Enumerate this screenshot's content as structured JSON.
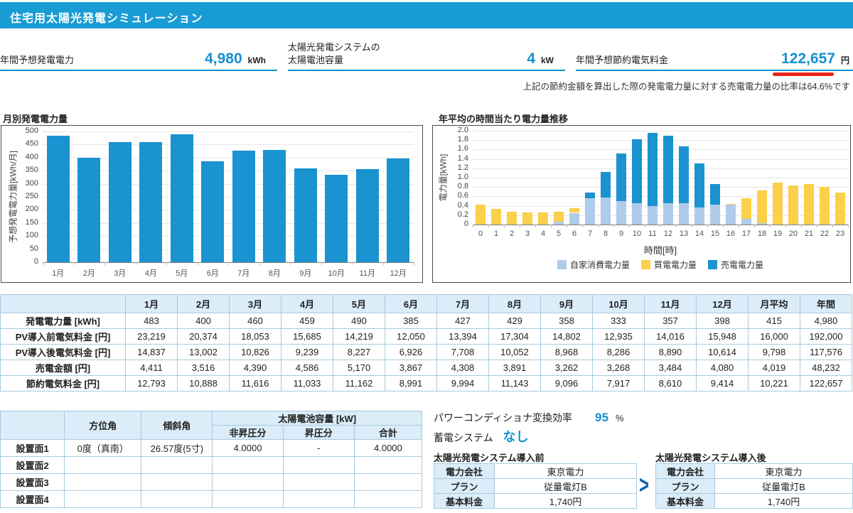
{
  "header": {
    "title": "住宅用太陽光発電シミュレーション"
  },
  "summary": {
    "metrics": [
      {
        "label": "年間予想発電電力",
        "value": "4,980",
        "unit": "kWh"
      },
      {
        "label": "太陽光発電システムの\n太陽電池容量",
        "value": "4",
        "unit": "kW"
      },
      {
        "label": "年間予想節約電気料金",
        "value": "122,657",
        "unit": "円"
      }
    ],
    "note": "上記の節約金額を算出した際の発電電力量に対する売電電力量の比率は64.6%です"
  },
  "chart_data": [
    {
      "type": "bar",
      "title": "月別発電電力量",
      "categories": [
        "1月",
        "2月",
        "3月",
        "4月",
        "5月",
        "6月",
        "7月",
        "8月",
        "9月",
        "10月",
        "11月",
        "12月"
      ],
      "values": [
        483,
        400,
        460,
        459,
        490,
        385,
        427,
        429,
        358,
        333,
        357,
        398
      ],
      "xlabel": "",
      "ylabel": "予想発電電力量[kWh/月]",
      "ylim": [
        0,
        500
      ],
      "ytick_step": 50,
      "grid": true,
      "bar_color": "#1a93d0"
    },
    {
      "type": "bar",
      "stacked": true,
      "title": "年平均の時間当たり電力量推移",
      "categories": [
        "0",
        "1",
        "2",
        "3",
        "4",
        "5",
        "6",
        "7",
        "8",
        "9",
        "10",
        "11",
        "12",
        "13",
        "14",
        "15",
        "16",
        "17",
        "18",
        "19",
        "20",
        "21",
        "22",
        "23"
      ],
      "series": [
        {
          "name": "自家消費電力量",
          "color": "#aecbea",
          "values": [
            0,
            0,
            0,
            0,
            0,
            0.06,
            0.25,
            0.56,
            0.57,
            0.5,
            0.45,
            0.4,
            0.46,
            0.45,
            0.37,
            0.42,
            0.43,
            0.12,
            0.03,
            0,
            0,
            0,
            0,
            0
          ]
        },
        {
          "name": "買電電力量",
          "color": "#fbd04a",
          "values": [
            0.43,
            0.33,
            0.28,
            0.26,
            0.26,
            0.21,
            0.1,
            0,
            0,
            0,
            0,
            0,
            0,
            0,
            0,
            0,
            0.01,
            0.44,
            0.69,
            0.9,
            0.83,
            0.87,
            0.81,
            0.68
          ]
        },
        {
          "name": "売電電力量",
          "color": "#1a93d0",
          "values": [
            0,
            0,
            0,
            0,
            0,
            0,
            0,
            0.12,
            0.55,
            1.02,
            1.37,
            1.55,
            1.44,
            1.21,
            0.93,
            0.44,
            0,
            0,
            0,
            0,
            0,
            0,
            0,
            0
          ]
        }
      ],
      "stack_order": [
        0,
        2,
        1
      ],
      "xlabel": "時間[時]",
      "ylabel": "電力量[kWh]",
      "ylim": [
        0,
        2.0
      ],
      "ytick_step": 0.2,
      "grid": true,
      "legend_position": "bottom"
    }
  ],
  "monthly_table": {
    "columns": [
      "",
      "1月",
      "2月",
      "3月",
      "4月",
      "5月",
      "6月",
      "7月",
      "8月",
      "9月",
      "10月",
      "11月",
      "12月",
      "月平均",
      "年間"
    ],
    "rows": [
      {
        "label": "発電電力量 [kWh]",
        "values": [
          "483",
          "400",
          "460",
          "459",
          "490",
          "385",
          "427",
          "429",
          "358",
          "333",
          "357",
          "398",
          "415",
          "4,980"
        ]
      },
      {
        "label": "PV導入前電気料金 [円]",
        "values": [
          "23,219",
          "20,374",
          "18,053",
          "15,685",
          "14,219",
          "12,050",
          "13,394",
          "17,304",
          "14,802",
          "12,935",
          "14,016",
          "15,948",
          "16,000",
          "192,000"
        ]
      },
      {
        "label": "PV導入後電気料金 [円]",
        "values": [
          "14,837",
          "13,002",
          "10,826",
          "9,239",
          "8,227",
          "6,926",
          "7,708",
          "10,052",
          "8,968",
          "8,286",
          "8,890",
          "10,614",
          "9,798",
          "117,576"
        ]
      },
      {
        "label": "売電金額 [円]",
        "values": [
          "4,411",
          "3,516",
          "4,390",
          "4,586",
          "5,170",
          "3,867",
          "4,308",
          "3,891",
          "3,262",
          "3,268",
          "3,484",
          "4,080",
          "4,019",
          "48,232"
        ]
      },
      {
        "label": "節約電気料金 [円]",
        "values": [
          "12,793",
          "10,888",
          "11,616",
          "11,033",
          "11,162",
          "8,991",
          "9,994",
          "11,143",
          "9,096",
          "7,917",
          "8,610",
          "9,414",
          "10,221",
          "122,657"
        ]
      }
    ]
  },
  "surface_table": {
    "headers": {
      "azimuth": "方位角",
      "tilt": "傾斜角",
      "capacity_group": "太陽電池容量 [kW]",
      "nonboost": "非昇圧分",
      "boost": "昇圧分",
      "total": "合計"
    },
    "rows": [
      {
        "label": "設置面1",
        "azimuth": "0度（真南）",
        "tilt": "26.57度(5寸)",
        "nonboost": "4.0000",
        "boost": "-",
        "total": "4.0000"
      },
      {
        "label": "設置面2",
        "azimuth": "",
        "tilt": "",
        "nonboost": "",
        "boost": "",
        "total": ""
      },
      {
        "label": "設置面3",
        "azimuth": "",
        "tilt": "",
        "nonboost": "",
        "boost": "",
        "total": ""
      },
      {
        "label": "設置面4",
        "azimuth": "",
        "tilt": "",
        "nonboost": "",
        "boost": "",
        "total": ""
      }
    ]
  },
  "system": {
    "pcs_label": "パワーコンディショナ変換効率",
    "pcs_value": "95",
    "pcs_unit": "%",
    "battery_label": "蓄電システム",
    "battery_value": "なし"
  },
  "plan_compare": {
    "before_title": "太陽光発電システム導入前",
    "after_title": "太陽光発電システム導入後",
    "arrow": ">",
    "before_rows": [
      {
        "label": "電力会社",
        "value": "東京電力"
      },
      {
        "label": "プラン",
        "value": "従量電灯B"
      },
      {
        "label": "基本料金",
        "value": "1,740円"
      }
    ],
    "after_rows": [
      {
        "label": "電力会社",
        "value": "東京電力"
      },
      {
        "label": "プラン",
        "value": "従量電灯B"
      },
      {
        "label": "基本料金",
        "value": "1,740円"
      }
    ]
  },
  "colors": {
    "accent_blue": "#1790d2",
    "header_blue": "#199CD4",
    "bar_blue": "#1a93d0",
    "self_consumption_blue": "#aecbea",
    "buy_yellow": "#fbd04a",
    "savings_red": "#e5251b",
    "table_header_bg": "#daedf8",
    "table_border": "#a9cade"
  }
}
